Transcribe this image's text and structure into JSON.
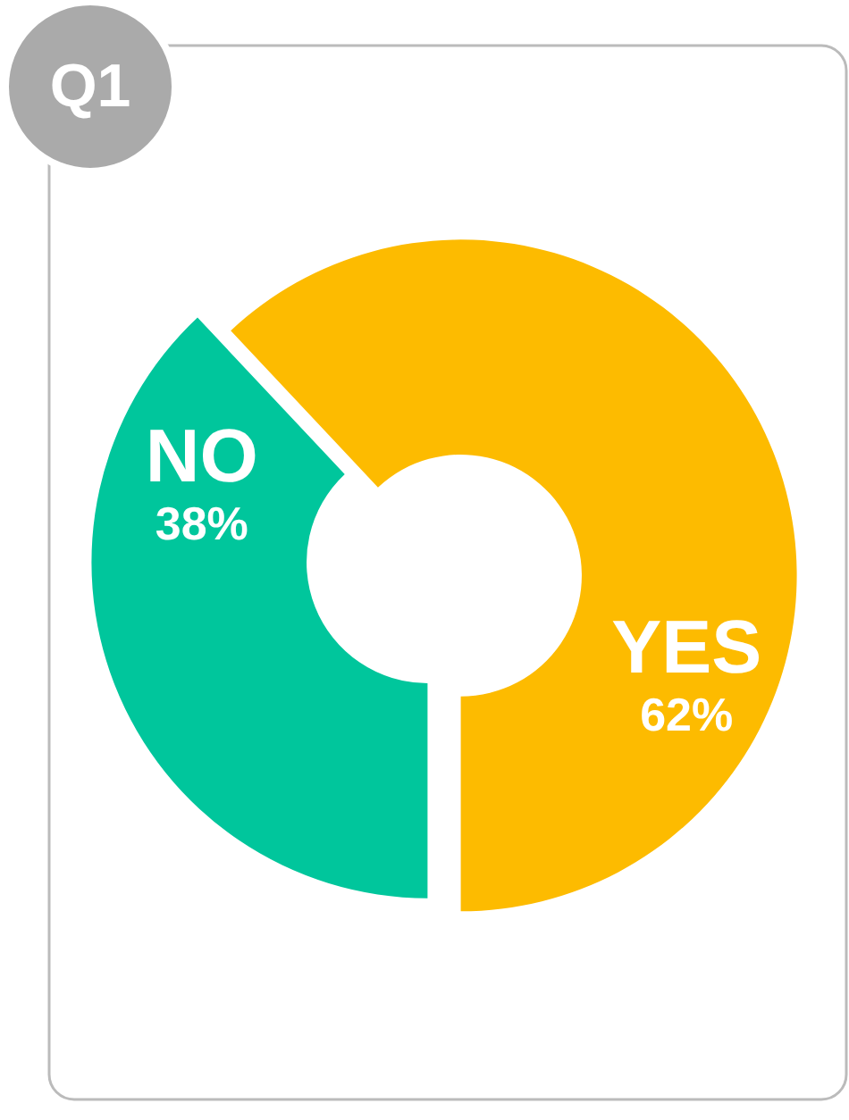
{
  "chart_data": {
    "type": "donut",
    "title": "Q1",
    "categories": [
      "YES",
      "NO"
    ],
    "values": [
      62,
      38
    ],
    "colors": [
      "#fdbb00",
      "#00c69c"
    ],
    "value_labels": [
      "62%",
      "38%"
    ]
  }
}
